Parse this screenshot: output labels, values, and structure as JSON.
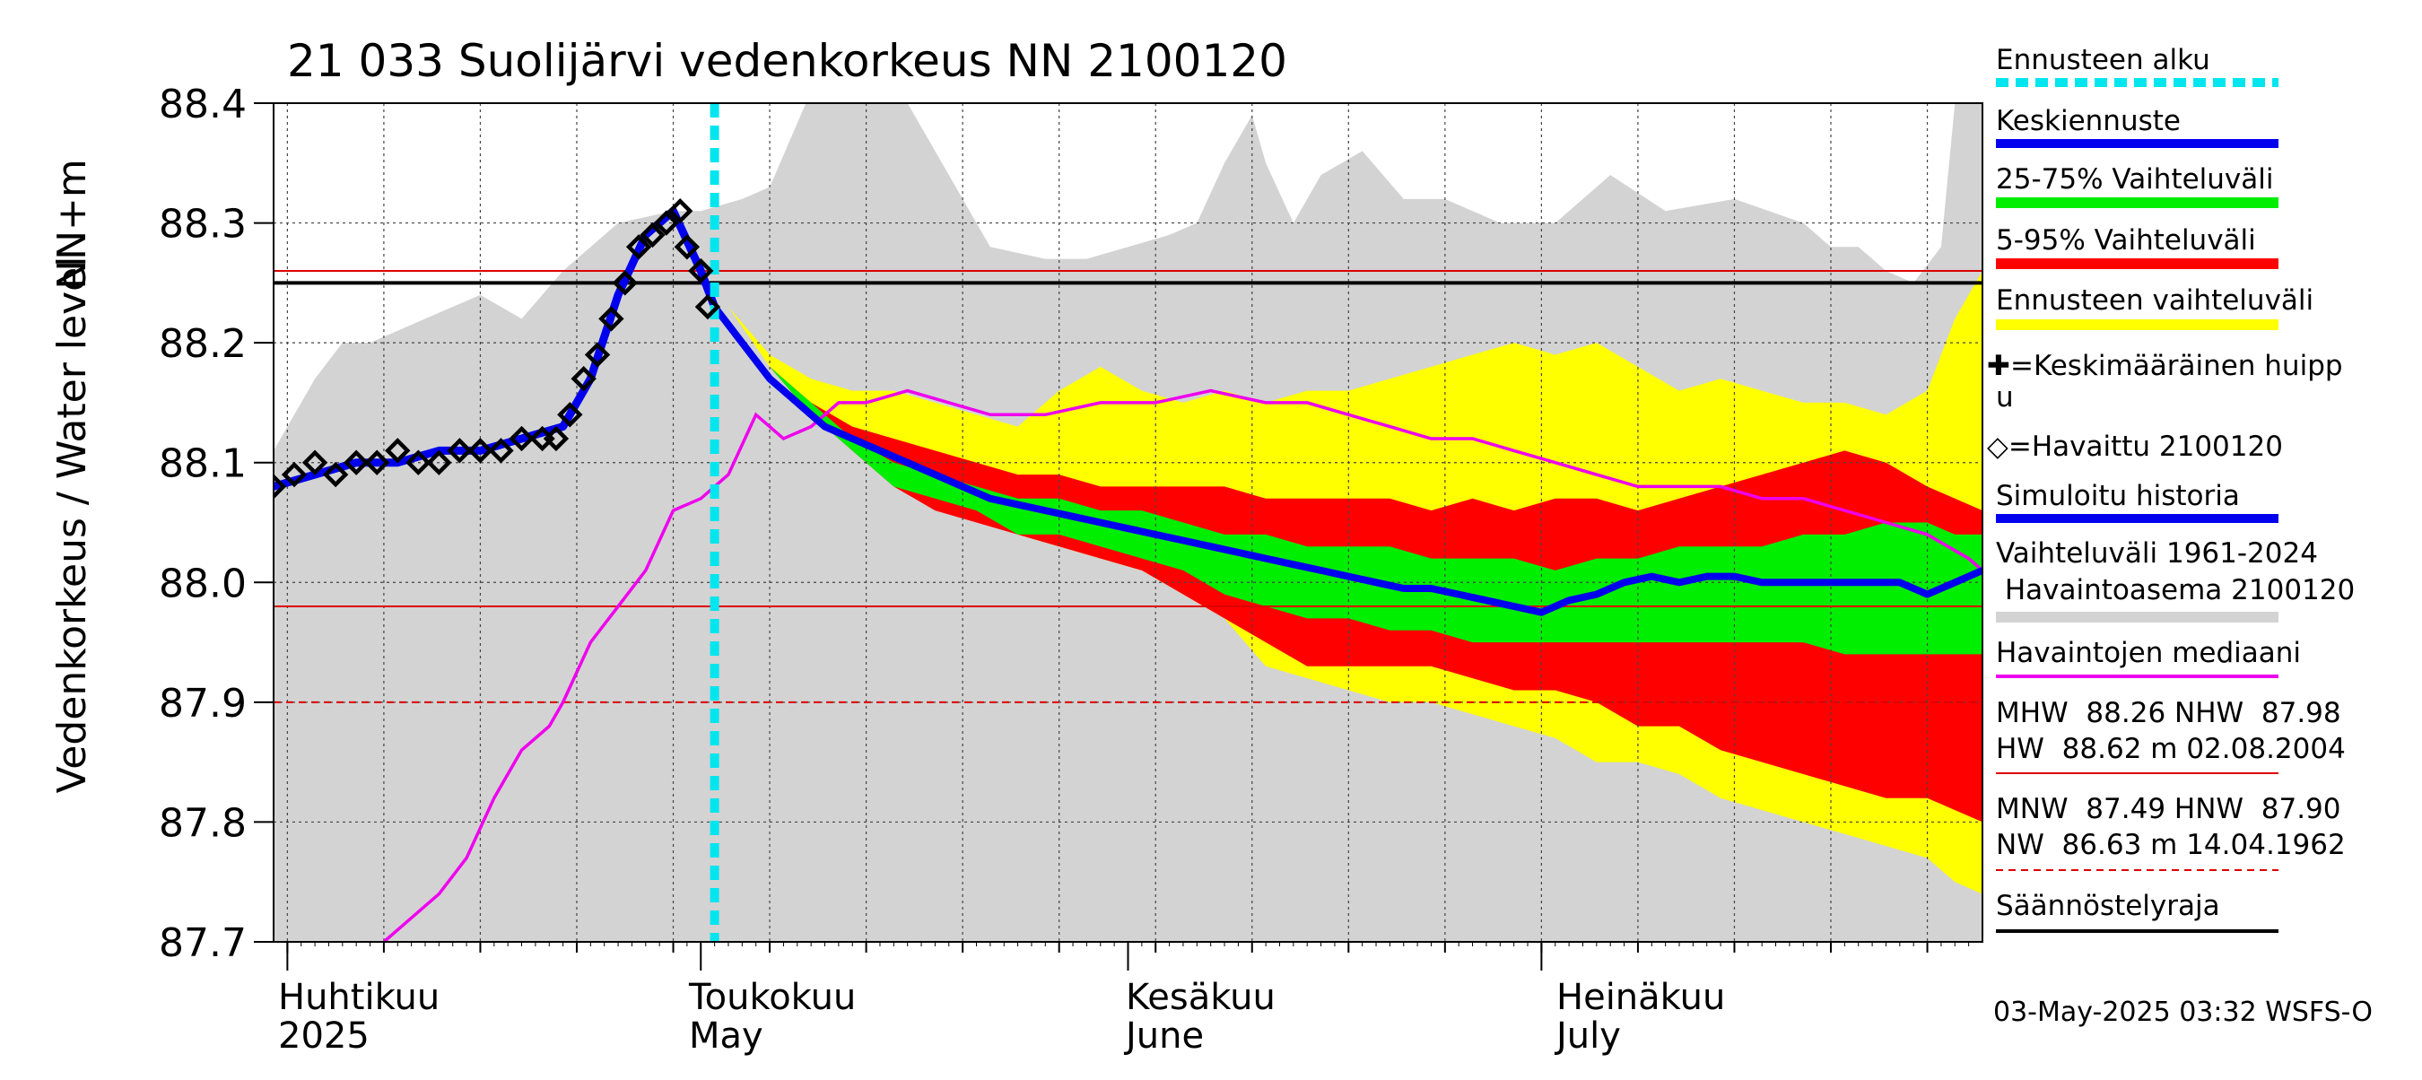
{
  "title": "21 033 Suolijärvi vedenkorkeus NN 2100120",
  "y_axis_label": "Vedenkorkeus / Water level",
  "y_unit_label": "NN+m",
  "months": [
    {
      "fi": "Huhtikuu",
      "en": "2025"
    },
    {
      "fi": "Toukokuu",
      "en": "May"
    },
    {
      "fi": "Kesäkuu",
      "en": "June"
    },
    {
      "fi": "Heinäkuu",
      "en": "July"
    }
  ],
  "timestamp": "03-May-2025 03:32 WSFS-O",
  "legend": {
    "forecast_start": "Ennusteen alku",
    "mean_forecast": "Keskiennuste",
    "band_25_75": "25-75% Vaihteluväli",
    "band_5_95": "5-95% Vaihteluväli",
    "forecast_range": "Ennusteen vaihteluväli",
    "mean_peak_line1": "✚=Keskimääräinen huipp",
    "mean_peak_line2": "u",
    "observed": "◇=Havaittu 2100120",
    "simulated": "Simuloitu historia",
    "hist_range_line1": "Vaihteluväli 1961-2024",
    "hist_range_line2": " Havaintoasema 2100120",
    "median": "Havaintojen mediaani",
    "mhw_line1": "MHW  88.26 NHW  87.98",
    "mhw_line2": "HW  88.62 m 02.08.2004",
    "mnw_line1": "MNW  87.49 HNW  87.90",
    "mnw_line2": "NW  86.63 m 14.04.1962",
    "regulation": "Säännöstelyraja"
  },
  "colors": {
    "hist_range": "#d3d3d3",
    "forecast_range": "#ffff00",
    "band_5_95": "#ff0000",
    "band_25_75": "#00ee00",
    "mean_forecast": "#0000ee",
    "median": "#ee00ee",
    "forecast_start": "#00e5ee",
    "ref_red": "#dd0000",
    "regulation": "#000000"
  },
  "chart_data": {
    "type": "line",
    "x_unit": "days from 1 April 2025",
    "xlim": [
      -1,
      123
    ],
    "ylim": [
      87.7,
      88.4
    ],
    "yticks": [
      87.7,
      87.8,
      87.9,
      88.0,
      88.1,
      88.2,
      88.3,
      88.4
    ],
    "month_starts": [
      0,
      30,
      61,
      91
    ],
    "forecast_start": 31,
    "reference_lines": {
      "MHW": 88.26,
      "NHW": 87.98,
      "HNW": 87.9,
      "regulation_limit": 88.25
    },
    "historical_range": {
      "x": [
        -1,
        2,
        4,
        6,
        10,
        14,
        17,
        20,
        24,
        28,
        30,
        33,
        35,
        38,
        41,
        44,
        47,
        51,
        55,
        58,
        61,
        64,
        66,
        68,
        70,
        71,
        73,
        75,
        78,
        81,
        84,
        88,
        92,
        96,
        100,
        105,
        110,
        112,
        114,
        116,
        118,
        120,
        121,
        122,
        123
      ],
      "upper": [
        88.11,
        88.17,
        88.2,
        88.2,
        88.22,
        88.24,
        88.22,
        88.26,
        88.3,
        88.31,
        88.31,
        88.32,
        88.33,
        88.41,
        88.41,
        88.42,
        88.36,
        88.28,
        88.27,
        88.27,
        88.28,
        88.29,
        88.3,
        88.35,
        88.39,
        88.35,
        88.3,
        88.34,
        88.36,
        88.32,
        88.32,
        88.3,
        88.3,
        88.34,
        88.31,
        88.32,
        88.3,
        88.28,
        88.28,
        88.26,
        88.25,
        88.28,
        88.4,
        88.42,
        88.4
      ],
      "lower": [
        87.7,
        87.7,
        87.7,
        87.7,
        87.7,
        87.7,
        87.7,
        87.7,
        87.7,
        87.7,
        87.7,
        87.7,
        87.7,
        87.7,
        87.7,
        87.7,
        87.7,
        87.7,
        87.7,
        87.7,
        87.7,
        87.7,
        87.7,
        87.7,
        87.7,
        87.7,
        87.7,
        87.7,
        87.7,
        87.7,
        87.7,
        87.7,
        87.7,
        87.7,
        87.7,
        87.7,
        87.7,
        87.7,
        87.7,
        87.7,
        87.7,
        87.7,
        87.7,
        87.7,
        87.7
      ]
    },
    "forecast_range": {
      "x": [
        32,
        35,
        38,
        41,
        44,
        47,
        50,
        53,
        56,
        59,
        62,
        65,
        68,
        71,
        74,
        77,
        80,
        83,
        86,
        89,
        92,
        95,
        98,
        101,
        104,
        107,
        110,
        113,
        116,
        119,
        121,
        123
      ],
      "upper": [
        88.23,
        88.19,
        88.17,
        88.16,
        88.16,
        88.15,
        88.14,
        88.13,
        88.16,
        88.18,
        88.16,
        88.15,
        88.16,
        88.15,
        88.16,
        88.16,
        88.17,
        88.18,
        88.19,
        88.2,
        88.19,
        88.2,
        88.18,
        88.16,
        88.17,
        88.16,
        88.15,
        88.15,
        88.14,
        88.16,
        88.22,
        88.26
      ],
      "lower": [
        88.23,
        88.18,
        88.15,
        88.12,
        88.09,
        88.07,
        88.06,
        88.04,
        88.03,
        88.02,
        88.01,
        87.99,
        87.97,
        87.93,
        87.92,
        87.91,
        87.9,
        87.9,
        87.89,
        87.88,
        87.87,
        87.85,
        87.85,
        87.84,
        87.82,
        87.81,
        87.8,
        87.79,
        87.78,
        87.77,
        87.75,
        87.74
      ]
    },
    "band_5_95": {
      "x": [
        32,
        35,
        38,
        41,
        44,
        47,
        50,
        53,
        56,
        59,
        62,
        65,
        68,
        71,
        74,
        77,
        80,
        83,
        86,
        89,
        92,
        95,
        98,
        101,
        104,
        107,
        110,
        113,
        116,
        119,
        121,
        123
      ],
      "upper": [
        88.23,
        88.18,
        88.15,
        88.13,
        88.12,
        88.11,
        88.1,
        88.09,
        88.09,
        88.08,
        88.08,
        88.08,
        88.08,
        88.07,
        88.07,
        88.07,
        88.07,
        88.06,
        88.07,
        88.06,
        88.07,
        88.07,
        88.06,
        88.07,
        88.08,
        88.09,
        88.1,
        88.11,
        88.1,
        88.08,
        88.07,
        88.06
      ],
      "lower": [
        88.23,
        88.18,
        88.14,
        88.11,
        88.08,
        88.06,
        88.05,
        88.04,
        88.03,
        88.02,
        88.01,
        87.99,
        87.97,
        87.95,
        87.93,
        87.93,
        87.93,
        87.93,
        87.92,
        87.91,
        87.91,
        87.9,
        87.88,
        87.88,
        87.86,
        87.85,
        87.84,
        87.83,
        87.82,
        87.82,
        87.81,
        87.8
      ]
    },
    "band_25_75": {
      "x": [
        32,
        35,
        38,
        41,
        44,
        47,
        50,
        53,
        56,
        59,
        62,
        65,
        68,
        71,
        74,
        77,
        80,
        83,
        86,
        89,
        92,
        95,
        98,
        101,
        104,
        107,
        110,
        113,
        116,
        119,
        121,
        123
      ],
      "upper": [
        88.23,
        88.18,
        88.15,
        88.12,
        88.1,
        88.09,
        88.08,
        88.07,
        88.07,
        88.06,
        88.06,
        88.05,
        88.04,
        88.04,
        88.03,
        88.03,
        88.03,
        88.02,
        88.02,
        88.02,
        88.01,
        88.02,
        88.02,
        88.03,
        88.03,
        88.03,
        88.04,
        88.04,
        88.05,
        88.05,
        88.04,
        88.04
      ],
      "lower": [
        88.23,
        88.18,
        88.14,
        88.11,
        88.08,
        88.07,
        88.06,
        88.04,
        88.04,
        88.03,
        88.02,
        88.01,
        87.99,
        87.98,
        87.97,
        87.97,
        87.96,
        87.96,
        87.95,
        87.95,
        87.95,
        87.95,
        87.95,
        87.95,
        87.95,
        87.95,
        87.95,
        87.94,
        87.94,
        87.94,
        87.94,
        87.94
      ]
    },
    "series": [
      {
        "name": "Simuloitu historia",
        "x": [
          -1,
          2,
          5,
          8,
          11,
          14,
          17,
          20,
          22,
          24,
          26,
          28,
          30,
          31
        ],
        "y": [
          88.08,
          88.09,
          88.1,
          88.1,
          88.11,
          88.11,
          88.12,
          88.13,
          88.17,
          88.24,
          88.29,
          88.31,
          88.26,
          88.23
        ]
      },
      {
        "name": "Keskiennuste",
        "x": [
          31,
          33,
          35,
          37,
          39,
          41,
          43,
          45,
          47,
          49,
          51,
          53,
          55,
          57,
          59,
          61,
          63,
          65,
          67,
          69,
          71,
          73,
          75,
          77,
          79,
          81,
          83,
          85,
          87,
          89,
          91,
          93,
          95,
          97,
          99,
          101,
          103,
          105,
          107,
          109,
          111,
          113,
          115,
          117,
          119,
          121,
          123
        ],
        "y": [
          88.23,
          88.2,
          88.17,
          88.15,
          88.13,
          88.12,
          88.11,
          88.1,
          88.09,
          88.08,
          88.07,
          88.065,
          88.06,
          88.055,
          88.05,
          88.045,
          88.04,
          88.035,
          88.03,
          88.025,
          88.02,
          88.015,
          88.01,
          88.005,
          88.0,
          87.995,
          87.995,
          87.99,
          87.985,
          87.98,
          87.975,
          87.985,
          87.99,
          88.0,
          88.005,
          88.0,
          88.005,
          88.005,
          88.0,
          88.0,
          88.0,
          88.0,
          88.0,
          88.0,
          87.99,
          88.0,
          88.01
        ]
      },
      {
        "name": "Havaintojen mediaani",
        "x": [
          7,
          9,
          11,
          13,
          15,
          17,
          19,
          20,
          22,
          24,
          26,
          28,
          30,
          32,
          34,
          36,
          38,
          40,
          42,
          45,
          48,
          51,
          55,
          59,
          63,
          67,
          71,
          74,
          77,
          80,
          83,
          86,
          89,
          92,
          95,
          98,
          101,
          104,
          107,
          110,
          113,
          116,
          119,
          122,
          123
        ],
        "y": [
          87.7,
          87.72,
          87.74,
          87.77,
          87.82,
          87.86,
          87.88,
          87.9,
          87.95,
          87.98,
          88.01,
          88.06,
          88.07,
          88.09,
          88.14,
          88.12,
          88.13,
          88.15,
          88.15,
          88.16,
          88.15,
          88.14,
          88.14,
          88.15,
          88.15,
          88.16,
          88.15,
          88.15,
          88.14,
          88.13,
          88.12,
          88.12,
          88.11,
          88.1,
          88.09,
          88.08,
          88.08,
          88.08,
          88.07,
          88.07,
          88.06,
          88.05,
          88.04,
          88.02,
          88.01
        ]
      }
    ],
    "observed": {
      "name": "Havaittu 2100120",
      "x": [
        -1,
        0.5,
        2,
        3.5,
        5,
        6.5,
        8,
        9.5,
        11,
        12.5,
        14,
        15.5,
        17,
        18.5,
        19.5,
        20.5,
        21.5,
        22.5,
        23.5,
        24.5,
        25.5,
        26.5,
        27.5,
        28.5,
        29,
        30,
        30.5
      ],
      "y": [
        88.08,
        88.09,
        88.1,
        88.09,
        88.1,
        88.1,
        88.11,
        88.1,
        88.1,
        88.11,
        88.11,
        88.11,
        88.12,
        88.12,
        88.12,
        88.14,
        88.17,
        88.19,
        88.22,
        88.25,
        88.28,
        88.29,
        88.3,
        88.31,
        88.28,
        88.26,
        88.23
      ]
    }
  }
}
